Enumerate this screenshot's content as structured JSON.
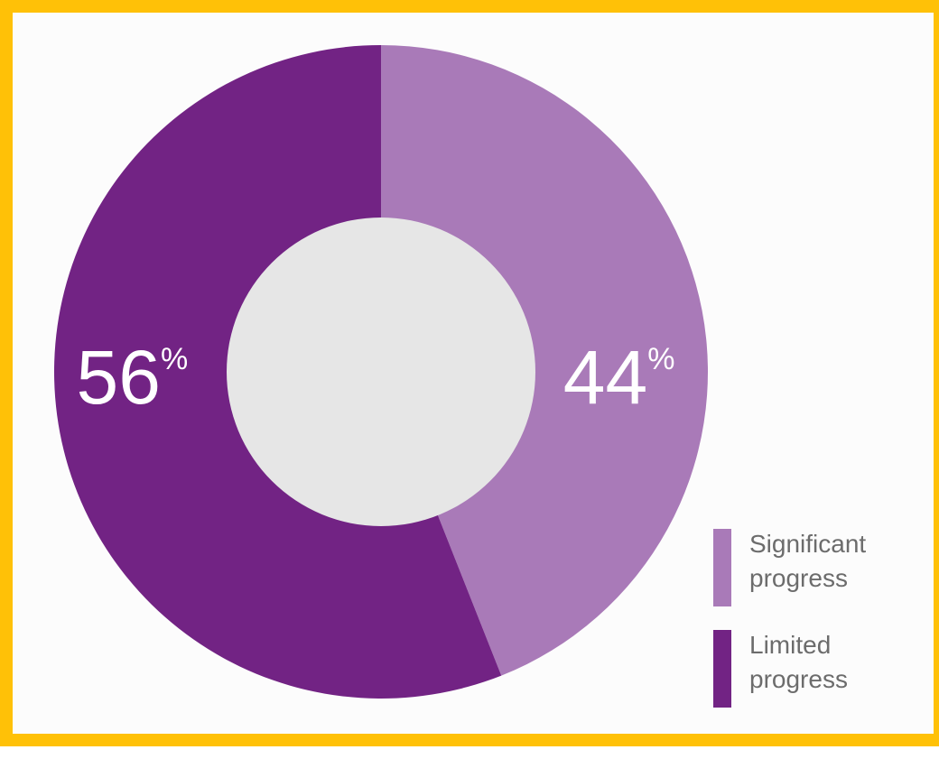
{
  "chart_data": {
    "type": "pie",
    "donut": true,
    "slices": [
      {
        "label": "Significant progress",
        "value": 44,
        "display": "44",
        "color": "#A97AB8"
      },
      {
        "label": "Limited progress",
        "value": 56,
        "display": "56",
        "color": "#722384"
      }
    ],
    "value_suffix": "%",
    "center_color": "#E6E6E6",
    "legend_placement": "bottom-right",
    "legend": [
      {
        "line1": "Significant",
        "line2": "progress",
        "color": "#A97AB8"
      },
      {
        "line1": "Limited",
        "line2": "progress",
        "color": "#722384"
      }
    ]
  }
}
